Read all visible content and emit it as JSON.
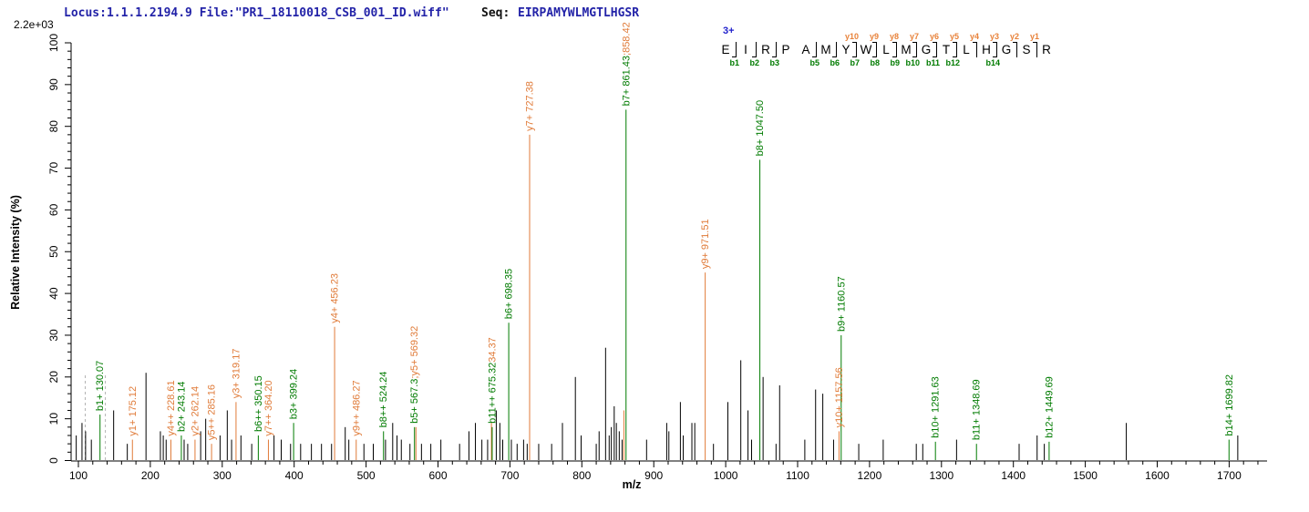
{
  "header": {
    "locus_file": "Locus:1.1.1.2194.9 File:\"PR1_18110018_CSB_001_ID.wiff\"",
    "seq_label": "Seq:",
    "sequence": "EIRPAMYWLMGTLHGSR",
    "intensity_scale": "2.2e+03"
  },
  "peptide": {
    "charge": "3+",
    "residues": [
      "E",
      "I",
      "R",
      "P",
      "A",
      "M",
      "Y",
      "W",
      "L",
      "M",
      "G",
      "T",
      "L",
      "H",
      "G",
      "S",
      "R"
    ],
    "gaps": [
      {
        "divider": true,
        "b": "b1",
        "y": null
      },
      {
        "divider": true,
        "b": "b2",
        "y": null
      },
      {
        "divider": true,
        "b": "b3",
        "y": null
      },
      {
        "divider": false,
        "b": null,
        "y": null
      },
      {
        "divider": true,
        "b": "b5",
        "y": null
      },
      {
        "divider": true,
        "b": "b6",
        "y": null
      },
      {
        "divider": true,
        "b": "b7",
        "y": "y10"
      },
      {
        "divider": true,
        "b": "b8",
        "y": "y9"
      },
      {
        "divider": true,
        "b": "b9",
        "y": "y8"
      },
      {
        "divider": true,
        "b": "b10",
        "y": "y7"
      },
      {
        "divider": true,
        "b": "b11",
        "y": "y6"
      },
      {
        "divider": true,
        "b": "b12",
        "y": "y5"
      },
      {
        "divider": true,
        "b": null,
        "y": "y4"
      },
      {
        "divider": true,
        "b": "b14",
        "y": "y3"
      },
      {
        "divider": true,
        "b": null,
        "y": "y2"
      },
      {
        "divider": true,
        "b": null,
        "y": "y1"
      }
    ]
  },
  "chart_data": {
    "type": "bar",
    "subtype": "ms2-centroid-mass-spectrum",
    "title": "",
    "xlabel": "m/z",
    "ylabel": "Relative  Intensity (%)",
    "x_axis": {
      "min": 88,
      "max": 1755,
      "major_start": 100,
      "major_end": 1700,
      "major_step": 100,
      "minor_step": 20
    },
    "y_axis": {
      "min": 0,
      "max": 100,
      "major_step": 10,
      "minor_step": 2
    },
    "colors": {
      "b_ion": "#007B00",
      "y_ion": "#E07B39",
      "unassigned": "#000000",
      "reference": "#B4B4B4",
      "axis": "#000000"
    },
    "legend_position": "none",
    "grid": false,
    "reference_lines": [
      {
        "mz": 109.5,
        "pct": 21
      },
      {
        "mz": 137.5,
        "pct": 21
      }
    ],
    "peaks": [
      {
        "mz": 130.07,
        "pct": 11,
        "ion": "b",
        "label": "b1+ 130.07"
      },
      {
        "mz": 175.12,
        "pct": 5,
        "ion": "y",
        "label": "y1+ 175.12"
      },
      {
        "mz": 228.61,
        "pct": 5,
        "ion": "y",
        "label": "y4++ 228.61"
      },
      {
        "mz": 243.14,
        "pct": 6,
        "ion": "b",
        "label": "b2+ 243.14"
      },
      {
        "mz": 262.14,
        "pct": 5,
        "ion": "y",
        "label": "y2+ 262.14"
      },
      {
        "mz": 285.16,
        "pct": 4,
        "ion": "y",
        "label": "y5++ 285.16"
      },
      {
        "mz": 319.17,
        "pct": 14,
        "ion": "y",
        "label": "y3+ 319.17"
      },
      {
        "mz": 350.15,
        "pct": 6,
        "ion": "b",
        "label": "b6++ 350.15"
      },
      {
        "mz": 364.2,
        "pct": 5,
        "ion": "y",
        "label": "y7++ 364.20"
      },
      {
        "mz": 399.24,
        "pct": 9,
        "ion": "b",
        "label": "b3+ 399.24"
      },
      {
        "mz": 456.23,
        "pct": 32,
        "ion": "y",
        "label": "y4+ 456.23"
      },
      {
        "mz": 486.27,
        "pct": 5,
        "ion": "y",
        "label": "y9++ 486.27"
      },
      {
        "mz": 524.24,
        "pct": 7,
        "ion": "b",
        "label": "b8++ 524.24"
      },
      {
        "mz": 567.3,
        "pct": 8,
        "ion": "b",
        "label_parts": [
          {
            "text": "b5+ 567.3",
            "ion": "b"
          },
          {
            "text": ";y5+ 569.32",
            "ion": "y"
          }
        ]
      },
      {
        "mz": 569.32,
        "pct": 8,
        "ion": "y",
        "label": ""
      },
      {
        "mz": 674.3,
        "pct": 9,
        "ion": "y",
        "label": ""
      },
      {
        "mz": 675.32,
        "pct": 8,
        "ion": "b",
        "label_parts": [
          {
            "text": "b11++ 675.32",
            "ion": "b"
          },
          {
            "text": "34.37",
            "ion": "y"
          }
        ]
      },
      {
        "mz": 698.35,
        "pct": 33,
        "ion": "b",
        "label": "b6+ 698.35"
      },
      {
        "mz": 727.38,
        "pct": 78,
        "ion": "y",
        "label": "y7+ 727.38"
      },
      {
        "mz": 858.42,
        "pct": 12,
        "ion": "y",
        "label": ""
      },
      {
        "mz": 861.43,
        "pct": 84,
        "ion": "b",
        "label_parts": [
          {
            "text": "b7+ 861.43",
            "ion": "b"
          },
          {
            "text": ";858.42",
            "ion": "y"
          }
        ]
      },
      {
        "mz": 971.51,
        "pct": 45,
        "ion": "y",
        "label": "y9+ 971.51"
      },
      {
        "mz": 1047.5,
        "pct": 72,
        "ion": "b",
        "label": "b8+ 1047.50"
      },
      {
        "mz": 1157.56,
        "pct": 7,
        "ion": "y",
        "label": "y10+ 1157.56"
      },
      {
        "mz": 1160.57,
        "pct": 30,
        "ion": "b",
        "label": "b9+ 1160.57"
      },
      {
        "mz": 1291.63,
        "pct": 4.5,
        "ion": "b",
        "label": "b10+ 1291.63"
      },
      {
        "mz": 1348.69,
        "pct": 4,
        "ion": "b",
        "label": "b11+ 1348.69"
      },
      {
        "mz": 1449.69,
        "pct": 4.5,
        "ion": "b",
        "label": "b12+ 1449.69"
      },
      {
        "mz": 1699.82,
        "pct": 5,
        "ion": "b",
        "label": "b14+ 1699.82"
      }
    ],
    "unassigned_peaks": [
      [
        97,
        6
      ],
      [
        105,
        9
      ],
      [
        110,
        7
      ],
      [
        118,
        5
      ],
      [
        149,
        12
      ],
      [
        168,
        4
      ],
      [
        194,
        21
      ],
      [
        214,
        7
      ],
      [
        218,
        6
      ],
      [
        222,
        5
      ],
      [
        247,
        5
      ],
      [
        252,
        4
      ],
      [
        270,
        7
      ],
      [
        277,
        10
      ],
      [
        297,
        6
      ],
      [
        307,
        12
      ],
      [
        313,
        5
      ],
      [
        326,
        6
      ],
      [
        341,
        4
      ],
      [
        372,
        6
      ],
      [
        382,
        5
      ],
      [
        395,
        4
      ],
      [
        409,
        4
      ],
      [
        424,
        4
      ],
      [
        438,
        4
      ],
      [
        452,
        4
      ],
      [
        471,
        8
      ],
      [
        476,
        5
      ],
      [
        497,
        4
      ],
      [
        510,
        4
      ],
      [
        527,
        5
      ],
      [
        537,
        9
      ],
      [
        543,
        6
      ],
      [
        549,
        5
      ],
      [
        561,
        4
      ],
      [
        577,
        4
      ],
      [
        590,
        4
      ],
      [
        604,
        5
      ],
      [
        630,
        4
      ],
      [
        643,
        7
      ],
      [
        652,
        9
      ],
      [
        661,
        5
      ],
      [
        669,
        5
      ],
      [
        681,
        12
      ],
      [
        686,
        9
      ],
      [
        690,
        5
      ],
      [
        702,
        5
      ],
      [
        710,
        4
      ],
      [
        719,
        5
      ],
      [
        724,
        4
      ],
      [
        740,
        4
      ],
      [
        758,
        4
      ],
      [
        773,
        9
      ],
      [
        791,
        20
      ],
      [
        799,
        6
      ],
      [
        820,
        4
      ],
      [
        824,
        7
      ],
      [
        833,
        27
      ],
      [
        838,
        6
      ],
      [
        841,
        8
      ],
      [
        845,
        13
      ],
      [
        848,
        9
      ],
      [
        852,
        7
      ],
      [
        856,
        5
      ],
      [
        890,
        5
      ],
      [
        918,
        9
      ],
      [
        921,
        7
      ],
      [
        937,
        14
      ],
      [
        941,
        6
      ],
      [
        953,
        9
      ],
      [
        957,
        9
      ],
      [
        983,
        4
      ],
      [
        1003,
        14
      ],
      [
        1021,
        24
      ],
      [
        1031,
        12
      ],
      [
        1036,
        5
      ],
      [
        1052,
        20
      ],
      [
        1070,
        4
      ],
      [
        1075,
        18
      ],
      [
        1110,
        5
      ],
      [
        1125,
        17
      ],
      [
        1135,
        16
      ],
      [
        1150,
        5
      ],
      [
        1185,
        4
      ],
      [
        1219,
        5
      ],
      [
        1265,
        4
      ],
      [
        1274,
        4
      ],
      [
        1321,
        5
      ],
      [
        1408,
        4
      ],
      [
        1433,
        6
      ],
      [
        1443,
        4
      ],
      [
        1557,
        9
      ],
      [
        1712,
        6
      ]
    ]
  }
}
